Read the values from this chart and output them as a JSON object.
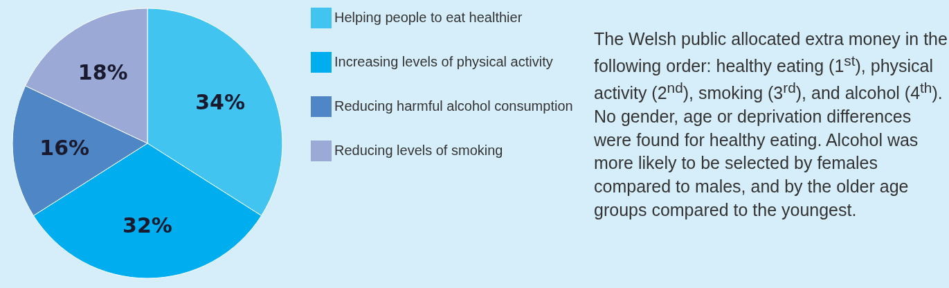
{
  "chart_data": {
    "type": "pie",
    "categories": [
      "Helping people to eat healthier",
      "Increasing levels of physical activity",
      "Reducing harmful alcohol consumption",
      "Reducing levels of smoking"
    ],
    "values": [
      34,
      32,
      16,
      18
    ],
    "colors": [
      "#41c5f0",
      "#00aeef",
      "#4f86c6",
      "#9aa9d6"
    ],
    "value_labels": [
      "34%",
      "32%",
      "16%",
      "18%"
    ],
    "legend": "right",
    "annotations": [
      "The Welsh public allocated extra money in the following order: healthy eating (1$^{st}$), physical activity (2$^{nd}$), smoking (3$^{rd}$), and alcohol (4$^{th}$). No gender, age or deprivation differences were found for healthy eating. Alcohol was more likely to be selected by females compared to males, and by the older age groups compared to the youngest."
    ]
  }
}
